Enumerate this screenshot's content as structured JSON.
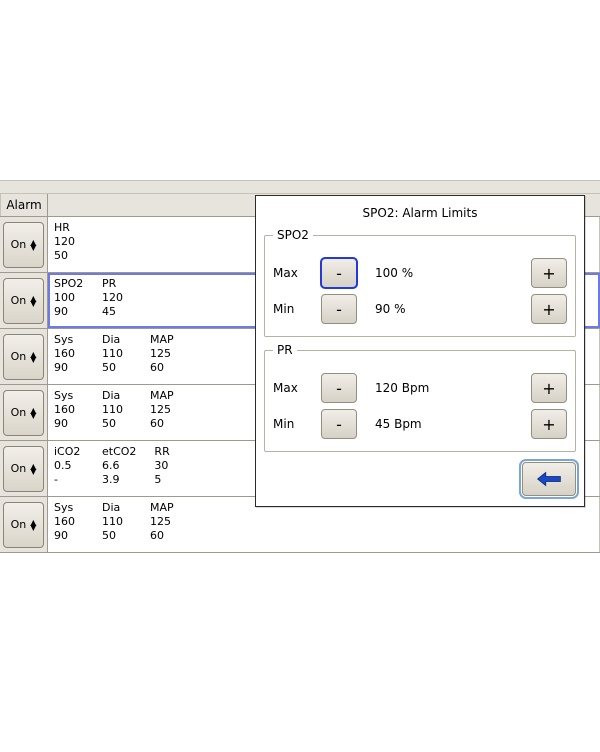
{
  "header": {
    "alarm_label": "Alarm",
    "right_title": "Alarm Limits"
  },
  "rows": [
    {
      "on_label": "On",
      "selected": false,
      "cols": [
        {
          "label": "HR",
          "hi": "120",
          "lo": "50"
        }
      ]
    },
    {
      "on_label": "On",
      "selected": true,
      "cols": [
        {
          "label": "SPO2",
          "hi": "100",
          "lo": "90"
        },
        {
          "label": "PR",
          "hi": "120",
          "lo": "45"
        }
      ]
    },
    {
      "on_label": "On",
      "selected": false,
      "cols": [
        {
          "label": "Sys",
          "hi": "160",
          "lo": "90"
        },
        {
          "label": "Dia",
          "hi": "110",
          "lo": "50"
        },
        {
          "label": "MAP",
          "hi": "125",
          "lo": "60"
        }
      ]
    },
    {
      "on_label": "On",
      "selected": false,
      "cols": [
        {
          "label": "Sys",
          "hi": "160",
          "lo": "90"
        },
        {
          "label": "Dia",
          "hi": "110",
          "lo": "50"
        },
        {
          "label": "MAP",
          "hi": "125",
          "lo": "60"
        }
      ]
    },
    {
      "on_label": "On",
      "selected": false,
      "cols": [
        {
          "label": "iCO2",
          "hi": "0.5",
          "lo": "-"
        },
        {
          "label": "etCO2",
          "hi": "6.6",
          "lo": "3.9"
        },
        {
          "label": "RR",
          "hi": "30",
          "lo": "5"
        }
      ]
    },
    {
      "on_label": "On",
      "selected": false,
      "cols": [
        {
          "label": "Sys",
          "hi": "160",
          "lo": "90"
        },
        {
          "label": "Dia",
          "hi": "110",
          "lo": "50"
        },
        {
          "label": "MAP",
          "hi": "125",
          "lo": "60"
        }
      ]
    }
  ],
  "dialog": {
    "title": "SPO2: Alarm Limits",
    "groups": [
      {
        "legend": "SPO2",
        "limits": [
          {
            "name": "Max",
            "value": "100 %",
            "minus_focused": true
          },
          {
            "name": "Min",
            "value": "90 %",
            "minus_focused": false
          }
        ]
      },
      {
        "legend": "PR",
        "limits": [
          {
            "name": "Max",
            "value": "120 Bpm",
            "minus_focused": false
          },
          {
            "name": "Min",
            "value": "45 Bpm",
            "minus_focused": false
          }
        ]
      }
    ],
    "back_arrow_color": "#1848c8"
  },
  "colors": {
    "panel_bg": "#e7e4de",
    "border": "#9f9a8d",
    "selection": "#6d79e8"
  }
}
